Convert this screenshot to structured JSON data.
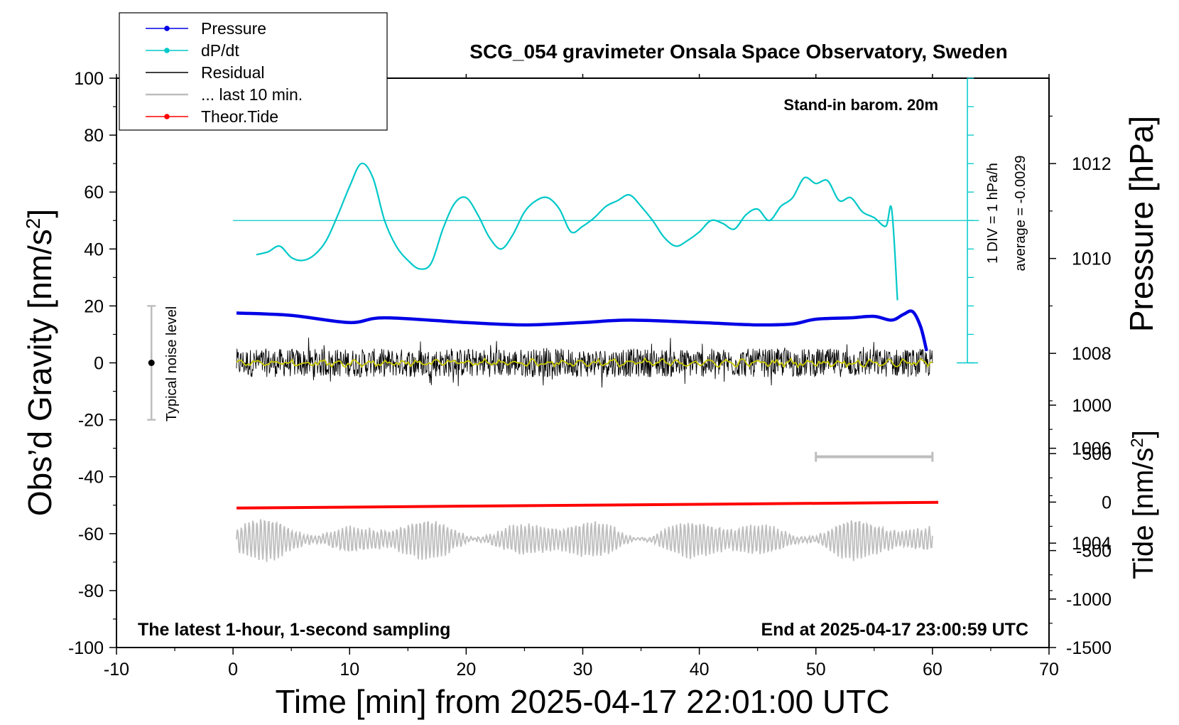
{
  "chart_data": {
    "type": "line",
    "title": "SCG_054 gravimeter Onsala Space Observatory, Sweden",
    "xlabel": "Time [min] from 2025-04-17 22:01:00 UTC",
    "xlim": [
      -10,
      70
    ],
    "x_ticks": [
      "-10",
      "0",
      "10",
      "20",
      "30",
      "40",
      "50",
      "60",
      "70"
    ],
    "ylabel_main": "Obs’d Gravity [nm/s",
    "ylabel_main_sup": "2",
    "ylabel_main_end": "]",
    "ylim": [
      -100,
      100
    ],
    "y_ticks": [
      "100",
      "80",
      "60",
      "40",
      "20",
      "0",
      "-20",
      "-40",
      "-60",
      "-80",
      "-100"
    ],
    "pressure_axis": {
      "label": "Pressure [hPa]",
      "ticks": [
        "1012",
        "1010",
        "1008",
        "1006",
        "1004"
      ],
      "ylim": [
        1001.8,
        1013.8
      ]
    },
    "tide_axis": {
      "label_main": "Tide [nm/s",
      "label_sup": "2",
      "label_end": "]",
      "ticks": [
        "1000",
        "500",
        "0",
        "-500",
        "-1000",
        "-1500"
      ],
      "ylim": [
        -1500,
        1000
      ]
    },
    "annotations": {
      "top_right": "Stand-in barom. 20m",
      "bottom_left": "The latest 1-hour, 1-second sampling",
      "bottom_right": "End at 2025-04-17 23:00:59 UTC",
      "scale_div": "1 DIV = 1 hPa/h",
      "average": "average = -0.0029",
      "noise": "Typical noise level"
    },
    "legend_position": "top-left",
    "legend": [
      {
        "label": "Pressure",
        "color": "#0000e6",
        "marker": true
      },
      {
        "label": "dP/dt",
        "color": "#00c8c8",
        "marker": true
      },
      {
        "label": "Residual",
        "color": "#000000",
        "marker": false
      },
      {
        "label": "... last 10 min.",
        "color": "#bebebe",
        "marker": false
      },
      {
        "label": "Theor.Tide",
        "color": "#ff0000",
        "marker": true
      }
    ],
    "noise_bar": {
      "x": -7,
      "ylow": -20,
      "yhigh": 20,
      "center": 0
    },
    "last10_bar": {
      "x0": 50,
      "x1": 60,
      "y": -33
    },
    "series": [
      {
        "name": "Pressure",
        "color": "#0000e6",
        "x": [
          0.3,
          5,
          10,
          13,
          20,
          25,
          30,
          34,
          40,
          45,
          48,
          50,
          53,
          55,
          56.5,
          57.5,
          58.3,
          59,
          59.5
        ],
        "values": [
          1008.85,
          1008.8,
          1008.65,
          1008.75,
          1008.65,
          1008.6,
          1008.65,
          1008.7,
          1008.65,
          1008.6,
          1008.62,
          1008.72,
          1008.75,
          1008.78,
          1008.7,
          1008.82,
          1008.88,
          1008.55,
          1008.05
        ]
      },
      {
        "name": "dP/dt",
        "color": "#00c8c8",
        "baseline_y": 50,
        "x": [
          2,
          3,
          4,
          5,
          6,
          7,
          8,
          9,
          10,
          11,
          12,
          13,
          14,
          15,
          16,
          17,
          18,
          19,
          20,
          21,
          22,
          23,
          24,
          25,
          26,
          27,
          28,
          29,
          30,
          31,
          32,
          33,
          34,
          35,
          36,
          37,
          38,
          39,
          40,
          41,
          42,
          43,
          44,
          45,
          46,
          47,
          48,
          49,
          50,
          51,
          52,
          53,
          54,
          55,
          56,
          56.5,
          57
        ],
        "values": [
          38,
          39,
          41,
          37,
          36,
          38,
          43,
          52,
          62,
          70,
          65,
          50,
          41,
          36,
          33,
          35,
          47,
          56,
          58,
          52,
          44,
          40,
          45,
          53,
          57,
          58,
          54,
          46,
          48,
          51,
          55,
          57,
          59,
          55,
          50,
          44,
          41,
          43,
          46,
          50,
          49,
          47,
          52,
          54,
          50,
          55,
          58,
          65,
          63,
          64,
          57,
          58,
          53,
          51,
          48,
          54,
          22
        ]
      },
      {
        "name": "Residual",
        "color": "#000000",
        "smooth_color": "#c8c800",
        "x_start": 0.3,
        "x_end": 60,
        "amplitude": 5,
        "offset": 0
      },
      {
        "name": "... last 10 min.",
        "color": "#bebebe",
        "x_start": 0.3,
        "x_end": 60,
        "amplitude": 4,
        "offset": -62
      },
      {
        "name": "Theor.Tide",
        "color": "#ff0000",
        "x": [
          0.3,
          60.5
        ],
        "values": [
          -51,
          -49
        ]
      }
    ]
  }
}
